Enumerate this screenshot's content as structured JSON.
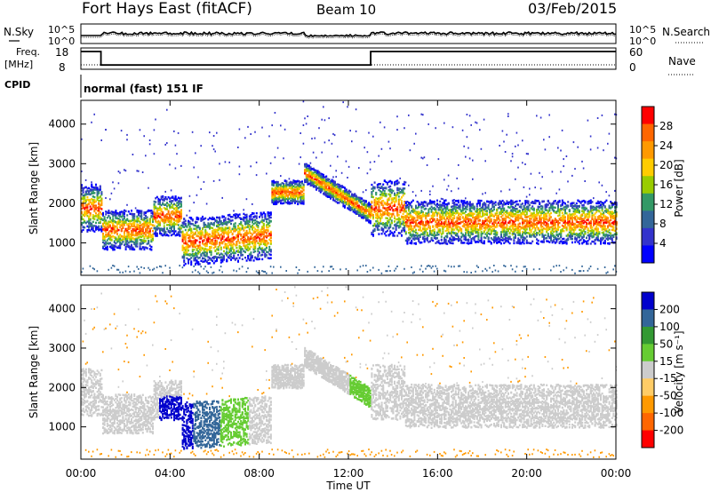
{
  "header": {
    "title": "Fort Hays East (fitACF)",
    "beam": "Beam 10",
    "date": "03/Feb/2015"
  },
  "top_panels": {
    "nsky_label": "N.Sky",
    "nsky_ticks": [
      "10^5",
      "10^0"
    ],
    "nsearch_label": "N.Search",
    "nsearch_ticks": [
      "10^5",
      "10^0"
    ],
    "freq_label_1": "Freq.",
    "freq_label_2": "[MHz]",
    "freq_ticks": [
      "18",
      "8"
    ],
    "nave_label": "Nave",
    "nave_ticks": [
      "60",
      "0"
    ],
    "cpid_label": "CPID",
    "cpid_text": "normal (fast) 151 IF"
  },
  "chart_data": [
    {
      "type": "heatmap",
      "panel": "power",
      "ylabel": "Slant Range [km]",
      "yticks": [
        "1000",
        "2000",
        "3000",
        "4000"
      ],
      "ylim": [
        180,
        4600
      ],
      "xlim": [
        0,
        24
      ],
      "xticks": [
        "00:00",
        "04:00",
        "08:00",
        "12:00",
        "16:00",
        "20:00",
        "00:00"
      ],
      "colorbar": {
        "label": "Power [dB]",
        "ticks": [
          "28",
          "24",
          "20",
          "16",
          "12",
          "8",
          "4"
        ],
        "colors": [
          "#ff0000",
          "#ff6600",
          "#ff9900",
          "#ffcc00",
          "#99cc00",
          "#339966",
          "#336699",
          "#3333cc",
          "#0000ff"
        ]
      }
    },
    {
      "type": "heatmap",
      "panel": "velocity",
      "ylabel": "Slant Range [km]",
      "yticks": [
        "1000",
        "2000",
        "3000",
        "4000"
      ],
      "ylim": [
        180,
        4600
      ],
      "xlim": [
        0,
        24
      ],
      "xlabel": "Time UT",
      "xticks": [
        "00:00",
        "04:00",
        "08:00",
        "12:00",
        "16:00",
        "20:00",
        "00:00"
      ],
      "colorbar": {
        "label": "Velocity [m s⁻¹]",
        "ticks": [
          "200",
          "100",
          "50",
          "15",
          "-15",
          "-50",
          "-100",
          "-200"
        ],
        "colors": [
          "#0000cc",
          "#336699",
          "#339933",
          "#66cc33",
          "#cccccc",
          "#ffcc66",
          "#ff9900",
          "#ff6600",
          "#ff0000"
        ]
      }
    }
  ]
}
